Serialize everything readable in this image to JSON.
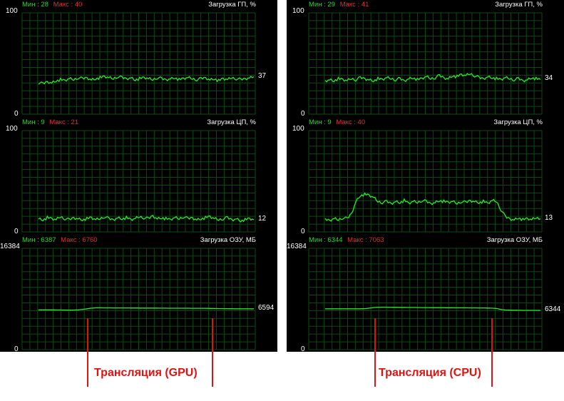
{
  "colors": {
    "grid": "#0d4a12",
    "trace": "#22ee22",
    "min": "#22dd22",
    "max": "#e03030",
    "annotation": "#e21212",
    "panel_bg": "#000000"
  },
  "panels": [
    {
      "graphs": [
        {
          "title": "Загрузка ГП, %",
          "min_text": "Мин : 28",
          "max_text": "Макс : 40",
          "ymax_label": "100",
          "ymin_label": "0",
          "current": "37"
        },
        {
          "title": "Загрузка ЦП, %",
          "min_text": "Мин : 9",
          "max_text": "Макс : 21",
          "ymax_label": "100",
          "ymin_label": "0",
          "current": "12"
        },
        {
          "title": "Загрузка ОЗУ, МБ",
          "min_text": "Мин : 6387",
          "max_text": "Макс : 6760",
          "ymax_label": "16384",
          "ymin_label": "0",
          "current": "6594"
        }
      ],
      "annotation": "Трансляция (GPU)"
    },
    {
      "graphs": [
        {
          "title": "Загрузка ГП, %",
          "min_text": "Мин : 29",
          "max_text": "Макс : 41",
          "ymax_label": "100",
          "ymin_label": "0",
          "current": "34"
        },
        {
          "title": "Загрузка ЦП, %",
          "min_text": "Мин : 9",
          "max_text": "Макс : 40",
          "ymax_label": "100",
          "ymin_label": "0",
          "current": "13"
        },
        {
          "title": "Загрузка ОЗУ, МБ",
          "min_text": "Мин : 6344",
          "max_text": "Макс : 7063",
          "ymax_label": "16384",
          "ymin_label": "0",
          "current": "6344"
        }
      ],
      "annotation": "Трансляция (CPU)"
    }
  ],
  "chart_data": [
    {
      "type": "line",
      "title": "Загрузка ГП, %",
      "ylim": [
        0,
        100
      ],
      "series": [
        {
          "values": [
            31,
            30,
            32,
            31,
            33,
            34,
            33,
            35,
            34,
            36,
            35,
            36,
            34,
            35,
            36,
            37,
            36,
            35,
            37,
            36,
            35,
            36,
            34,
            35,
            36,
            35,
            34,
            36,
            35,
            34,
            35,
            36,
            34,
            35,
            36,
            35,
            34,
            35,
            36,
            34,
            35,
            33,
            35,
            34,
            36,
            35,
            34,
            35,
            36,
            37
          ]
        }
      ]
    },
    {
      "type": "line",
      "title": "Загрузка ЦП, %",
      "ylim": [
        0,
        100
      ],
      "series": [
        {
          "values": [
            13,
            12,
            14,
            13,
            12,
            15,
            13,
            12,
            14,
            13,
            12,
            13,
            14,
            12,
            13,
            15,
            13,
            12,
            14,
            13,
            14,
            12,
            13,
            15,
            14,
            13,
            16,
            13,
            14,
            13,
            12,
            14,
            13,
            15,
            13,
            14,
            12,
            13,
            14,
            15,
            13,
            12,
            13,
            14,
            12,
            13,
            11,
            12,
            13,
            12
          ]
        }
      ]
    },
    {
      "type": "line",
      "title": "Загрузка ОЗУ, МБ",
      "ylim": [
        0,
        16384
      ],
      "series": [
        {
          "values": [
            6430,
            6430,
            6430,
            6430,
            6420,
            6410,
            6400,
            6390,
            6400,
            6430,
            6500,
            6600,
            6700,
            6760,
            6760,
            6750,
            6750,
            6740,
            6740,
            6740,
            6740,
            6730,
            6730,
            6720,
            6720,
            6720,
            6710,
            6710,
            6700,
            6700,
            6690,
            6690,
            6690,
            6690,
            6690,
            6680,
            6680,
            6680,
            6680,
            6660,
            6650,
            6640,
            6630,
            6620,
            6610,
            6600,
            6600,
            6600,
            6594,
            6594
          ]
        }
      ]
    },
    {
      "type": "line",
      "title": "Загрузка ГП, %",
      "ylim": [
        0,
        100
      ],
      "series": [
        {
          "values": [
            33,
            34,
            33,
            35,
            34,
            33,
            35,
            34,
            36,
            35,
            34,
            33,
            35,
            34,
            36,
            35,
            34,
            35,
            33,
            35,
            36,
            34,
            35,
            37,
            35,
            36,
            38,
            36,
            35,
            38,
            37,
            39,
            38,
            40,
            38,
            36,
            35,
            37,
            36,
            35,
            34,
            36,
            35,
            34,
            35,
            33,
            34,
            36,
            35,
            34
          ]
        }
      ]
    },
    {
      "type": "line",
      "title": "Загрузка ЦП, %",
      "ylim": [
        0,
        100
      ],
      "series": [
        {
          "values": [
            12,
            11,
            13,
            12,
            14,
            13,
            18,
            30,
            36,
            37,
            36,
            34,
            30,
            29,
            30,
            28,
            30,
            29,
            31,
            28,
            30,
            29,
            31,
            30,
            28,
            29,
            31,
            30,
            29,
            30,
            28,
            30,
            29,
            31,
            30,
            29,
            30,
            28,
            31,
            30,
            22,
            15,
            13,
            12,
            14,
            12,
            13,
            12,
            14,
            13
          ]
        }
      ]
    },
    {
      "type": "line",
      "title": "Загрузка ОЗУ, МБ",
      "ylim": [
        0,
        16384
      ],
      "series": [
        {
          "values": [
            6600,
            6600,
            6600,
            6600,
            6600,
            6600,
            6600,
            6600,
            6600,
            6620,
            6700,
            6800,
            6850,
            6860,
            6860,
            6850,
            6840,
            6830,
            6830,
            6820,
            6820,
            6810,
            6800,
            6800,
            6790,
            6790,
            6780,
            6780,
            6770,
            6770,
            6760,
            6760,
            6760,
            6750,
            6750,
            6740,
            6740,
            6720,
            6700,
            6650,
            6500,
            6400,
            6380,
            6370,
            6360,
            6350,
            6350,
            6344,
            6344,
            6344
          ]
        }
      ]
    }
  ]
}
